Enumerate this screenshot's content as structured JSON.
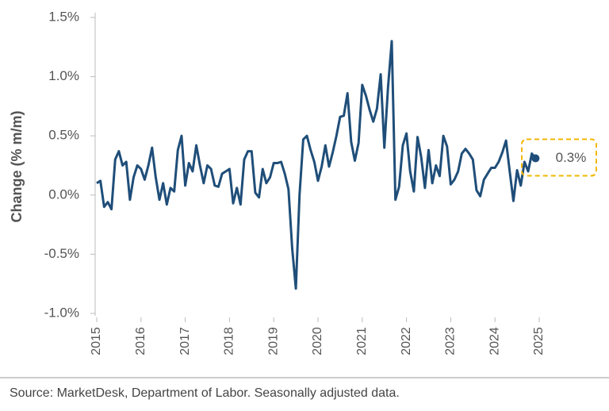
{
  "chart_data": {
    "type": "line",
    "y_label": "Change (% m/m)",
    "source": "Source: MarketDesk, Department of Labor. Seasonally adjusted data.",
    "annotation": "0.3%",
    "ylim": [
      -1.0,
      1.5
    ],
    "yticks": [
      {
        "value": -1.0,
        "label": "-1.0%"
      },
      {
        "value": -0.5,
        "label": "-0.5%"
      },
      {
        "value": 0.0,
        "label": "0.0%"
      },
      {
        "value": 0.5,
        "label": "0.5%"
      },
      {
        "value": 1.0,
        "label": "1.0%"
      },
      {
        "value": 1.5,
        "label": "1.5%"
      }
    ],
    "xlim": [
      2015,
      2025
    ],
    "xticks": [
      2015,
      2016,
      2017,
      2018,
      2019,
      2020,
      2021,
      2022,
      2023,
      2024,
      2025
    ],
    "x": [
      2015,
      2015.083,
      2015.167,
      2015.25,
      2015.333,
      2015.417,
      2015.5,
      2015.583,
      2015.667,
      2015.75,
      2015.833,
      2015.917,
      2016,
      2016.083,
      2016.167,
      2016.25,
      2016.333,
      2016.417,
      2016.5,
      2016.583,
      2016.667,
      2016.75,
      2016.833,
      2016.917,
      2017,
      2017.083,
      2017.167,
      2017.25,
      2017.333,
      2017.417,
      2017.5,
      2017.583,
      2017.667,
      2017.75,
      2017.833,
      2017.917,
      2018,
      2018.083,
      2018.167,
      2018.25,
      2018.333,
      2018.417,
      2018.5,
      2018.583,
      2018.667,
      2018.75,
      2018.833,
      2018.917,
      2019,
      2019.083,
      2019.167,
      2019.25,
      2019.333,
      2019.417,
      2019.5,
      2019.583,
      2019.667,
      2019.75,
      2019.833,
      2019.917,
      2020,
      2020.083,
      2020.167,
      2020.25,
      2020.333,
      2020.417,
      2020.5,
      2020.583,
      2020.667,
      2020.75,
      2020.833,
      2020.917,
      2021,
      2021.083,
      2021.167,
      2021.25,
      2021.333,
      2021.417,
      2021.5,
      2021.583,
      2021.667,
      2021.75,
      2021.833,
      2021.917,
      2022,
      2022.083,
      2022.167,
      2022.25,
      2022.333,
      2022.417,
      2022.5,
      2022.583,
      2022.667,
      2022.75,
      2022.833,
      2022.917,
      2023,
      2023.083,
      2023.167,
      2023.25,
      2023.333,
      2023.417,
      2023.5,
      2023.583,
      2023.667,
      2023.75,
      2023.833,
      2023.917,
      2024,
      2024.083,
      2024.167,
      2024.25,
      2024.333,
      2024.417,
      2024.5,
      2024.583,
      2024.667,
      2024.75,
      2024.833,
      2024.917
    ],
    "series": [
      {
        "color": "#1f4e79",
        "values": [
          0.1,
          0.12,
          -0.1,
          -0.06,
          -0.12,
          0.3,
          0.37,
          0.25,
          0.28,
          -0.04,
          0.15,
          0.25,
          0.22,
          0.13,
          0.25,
          0.4,
          0.15,
          -0.04,
          0.1,
          -0.08,
          0.06,
          0.03,
          0.38,
          0.5,
          0.08,
          0.27,
          0.2,
          0.42,
          0.25,
          0.1,
          0.25,
          0.22,
          0.08,
          0.07,
          0.18,
          0.2,
          0.22,
          -0.07,
          0.06,
          -0.08,
          0.3,
          0.37,
          0.37,
          0.02,
          -0.02,
          0.22,
          0.1,
          0.15,
          0.27,
          0.27,
          0.28,
          0.18,
          0.05,
          -0.45,
          -0.79,
          0.0,
          0.47,
          0.5,
          0.38,
          0.28,
          0.12,
          0.24,
          0.42,
          0.24,
          0.36,
          0.5,
          0.66,
          0.67,
          0.86,
          0.45,
          0.29,
          0.44,
          0.93,
          0.84,
          0.72,
          0.62,
          0.73,
          1.02,
          0.4,
          0.91,
          1.3,
          -0.04,
          0.07,
          0.42,
          0.52,
          0.2,
          0.03,
          0.49,
          0.32,
          0.06,
          0.38,
          0.1,
          0.25,
          0.16,
          0.5,
          0.41,
          0.09,
          0.13,
          0.2,
          0.35,
          0.39,
          0.35,
          0.3,
          0.04,
          -0.01,
          0.13,
          0.18,
          0.23,
          0.23,
          0.28,
          0.36,
          0.46,
          0.2,
          -0.05,
          0.21,
          0.08,
          0.28,
          0.2,
          0.35,
          0.31
        ]
      }
    ],
    "annotation_color": "#f2b705"
  }
}
